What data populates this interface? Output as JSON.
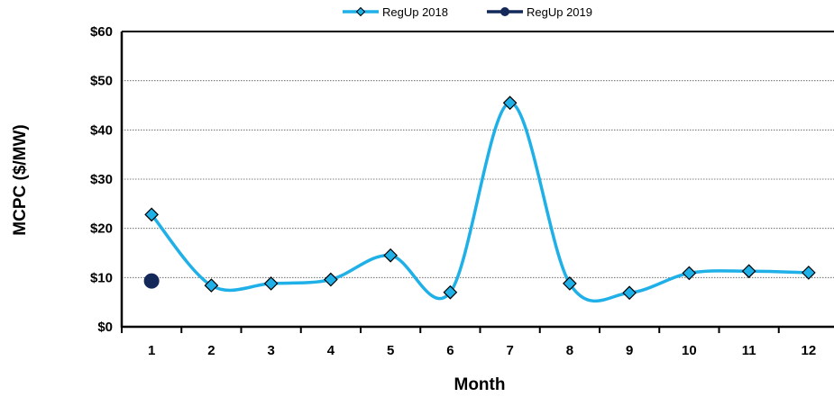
{
  "chart_data": {
    "type": "line",
    "title": "",
    "xlabel": "Month",
    "ylabel": "MCPC ($/MW)",
    "categories": [
      "1",
      "2",
      "3",
      "4",
      "5",
      "6",
      "7",
      "8",
      "9",
      "10",
      "11",
      "12"
    ],
    "ylim": [
      0,
      60
    ],
    "yticks": [
      0,
      10,
      20,
      30,
      40,
      50,
      60
    ],
    "ytick_labels": [
      "$0",
      "$10",
      "$20",
      "$30",
      "$40",
      "$50",
      "$60"
    ],
    "grid": "horizontal dotted",
    "legend_position": "top-center",
    "series": [
      {
        "name": "RegUp 2018",
        "color": "#1fb0e8",
        "marker": "diamond",
        "smooth": true,
        "values": [
          22.8,
          8.4,
          8.8,
          9.6,
          14.5,
          7.0,
          45.5,
          8.8,
          6.9,
          10.9,
          11.3,
          11.0
        ]
      },
      {
        "name": "RegUp 2019",
        "color": "#14285a",
        "marker": "circle",
        "smooth": false,
        "values": [
          9.3,
          null,
          null,
          null,
          null,
          null,
          null,
          null,
          null,
          null,
          null,
          null
        ]
      }
    ]
  }
}
